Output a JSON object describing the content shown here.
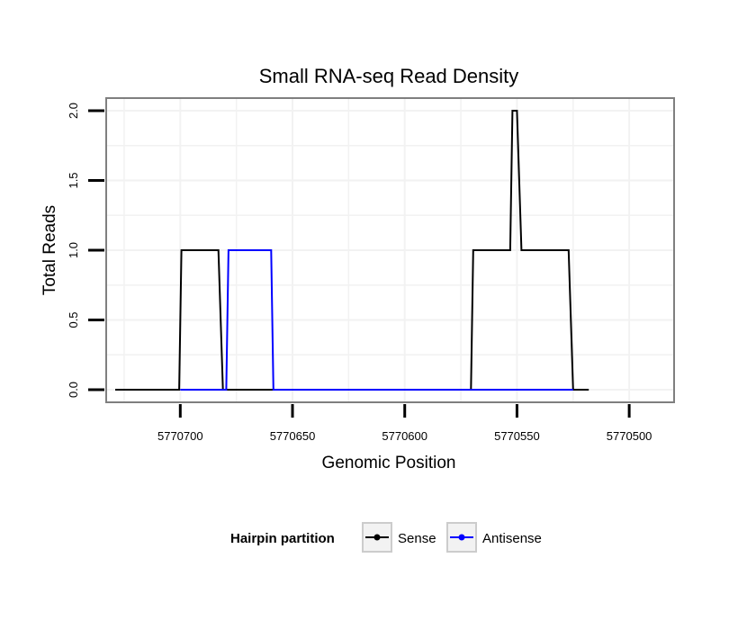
{
  "chart_data": {
    "type": "line",
    "title": "Small RNA-seq Read Density",
    "xlabel": "Genomic Position",
    "ylabel": "Total Reads",
    "x_reversed": true,
    "xlim": [
      5770733,
      5770480
    ],
    "ylim": [
      -0.09,
      2.09
    ],
    "xticks": [
      5770700,
      5770650,
      5770600,
      5770550,
      5770500
    ],
    "xtick_labels": [
      "5770700",
      "5770650",
      "5770600",
      "5770550",
      "5770500"
    ],
    "yticks": [
      0,
      0.5,
      1,
      1.5,
      2
    ],
    "ytick_labels": [
      "0.0",
      "0.5",
      "1.0",
      "1.5",
      "2.0"
    ],
    "grid": true,
    "series": [
      {
        "name": "Sense",
        "color": "#000000",
        "x": [
          5770729,
          5770700.5,
          5770699.5,
          5770683,
          5770681,
          5770570.5,
          5770569.5,
          5770555,
          5770553,
          5770552,
          5770550,
          5770548,
          5770547,
          5770545,
          5770527,
          5770525,
          5770518
        ],
        "y": [
          0,
          0,
          1,
          1,
          0,
          0,
          1,
          1,
          1,
          2,
          2,
          1,
          1,
          1,
          1,
          0,
          0
        ]
      },
      {
        "name": "Antisense",
        "color": "#0000ff",
        "x": [
          5770700,
          5770679.5,
          5770678.5,
          5770659.5,
          5770658.5,
          5770525
        ],
        "y": [
          0,
          0,
          1,
          1,
          0,
          0
        ]
      }
    ],
    "legend": {
      "title": "Hairpin partition",
      "position": "bottom",
      "entries": [
        "Sense",
        "Antisense"
      ]
    }
  }
}
